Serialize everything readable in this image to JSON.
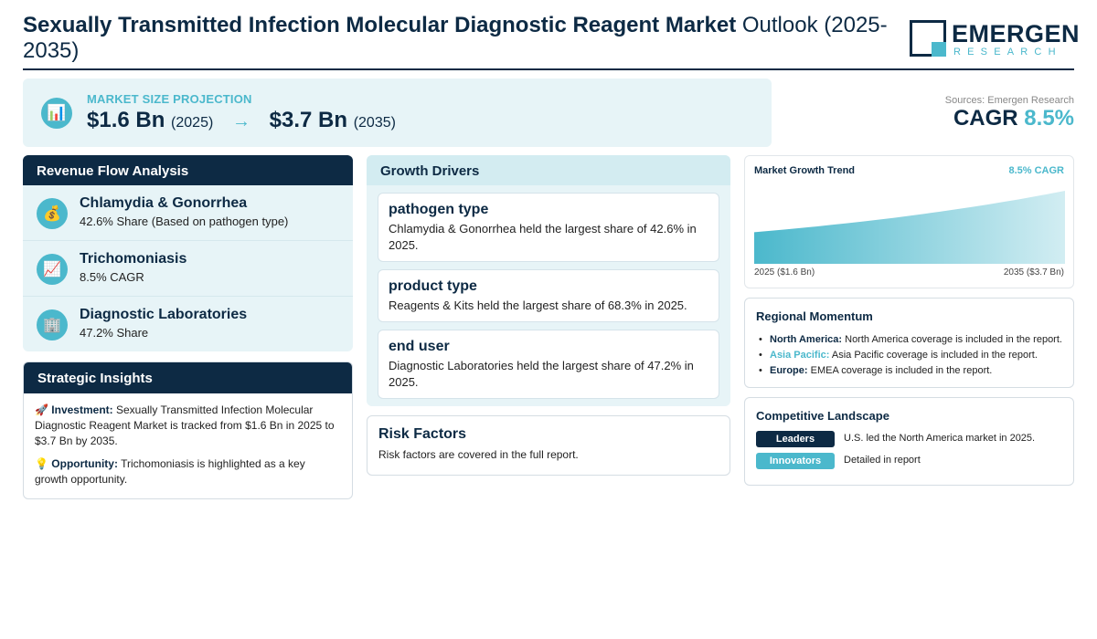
{
  "header": {
    "title_bold": "Sexually Transmitted Infection Molecular Diagnostic Reagent Market",
    "title_light": " Outlook (2025-2035)",
    "logo_main": "EMERGEN",
    "logo_sub": "RESEARCH"
  },
  "projection": {
    "label": "MARKET SIZE PROJECTION",
    "start_value": "$1.6 Bn",
    "start_year": "(2025)",
    "arrow": "→",
    "end_value": "$3.7 Bn",
    "end_year": "(2035)",
    "icon": "bar-chart-icon"
  },
  "sources": "Sources: Emergen Research",
  "cagr": {
    "label": "CAGR",
    "value": "8.5%"
  },
  "revenue_flow": {
    "title": "Revenue Flow Analysis",
    "items": [
      {
        "name": "Chlamydia & Gonorrhea",
        "sub": "42.6% Share (Based on pathogen type)",
        "icon": "money-bag-icon",
        "glyph": "💰"
      },
      {
        "name": "Trichomoniasis",
        "sub": "8.5% CAGR",
        "icon": "trend-up-icon",
        "glyph": "📈"
      },
      {
        "name": "Diagnostic Laboratories",
        "sub": "47.2% Share",
        "icon": "building-icon",
        "glyph": "🏢"
      }
    ]
  },
  "strategic": {
    "title": "Strategic Insights",
    "investment_label": "Investment:",
    "investment_text": " Sexually Transmitted Infection Molecular Diagnostic Reagent Market is tracked from $1.6 Bn in 2025 to $3.7 Bn by 2035.",
    "opportunity_label": "Opportunity:",
    "opportunity_text": " Trichomoniasis is highlighted as a key growth opportunity."
  },
  "growth_drivers": {
    "title": "Growth Drivers",
    "cards": [
      {
        "title": "pathogen type",
        "text": "Chlamydia & Gonorrhea held the largest share of 42.6% in 2025."
      },
      {
        "title": "product type",
        "text": "Reagents & Kits held the largest share of 68.3% in 2025."
      },
      {
        "title": "end user",
        "text": "Diagnostic Laboratories held the largest share of 47.2% in 2025."
      }
    ]
  },
  "risk": {
    "title": "Risk Factors",
    "text": "Risk factors are covered in the full report."
  },
  "trend": {
    "title": "Market Growth Trend",
    "cagr_label": "8.5% CAGR",
    "start_label": "2025 ($1.6 Bn)",
    "end_label": "2035 ($3.7 Bn)"
  },
  "chart_data": {
    "type": "area",
    "x": [
      2025,
      2035
    ],
    "values": [
      1.6,
      3.7
    ],
    "title": "Market Growth Trend"
  },
  "regional": {
    "title": "Regional Momentum",
    "items": [
      {
        "region": "North America:",
        "text": " North America coverage is included in the report."
      },
      {
        "region": "Asia Pacific:",
        "text": " Asia Pacific coverage is included in the report."
      },
      {
        "region": "Europe:",
        "text": " EMEA coverage is included in the report."
      }
    ]
  },
  "competitive": {
    "title": "Competitive Landscape",
    "rows": [
      {
        "badge": "Leaders",
        "text": "U.S. led the North America market in 2025."
      },
      {
        "badge": "Innovators",
        "text": "Detailed in report"
      }
    ]
  },
  "colors": {
    "navy": "#0d2a44",
    "teal": "#4bb8cc",
    "light_bg": "#e7f4f7"
  }
}
